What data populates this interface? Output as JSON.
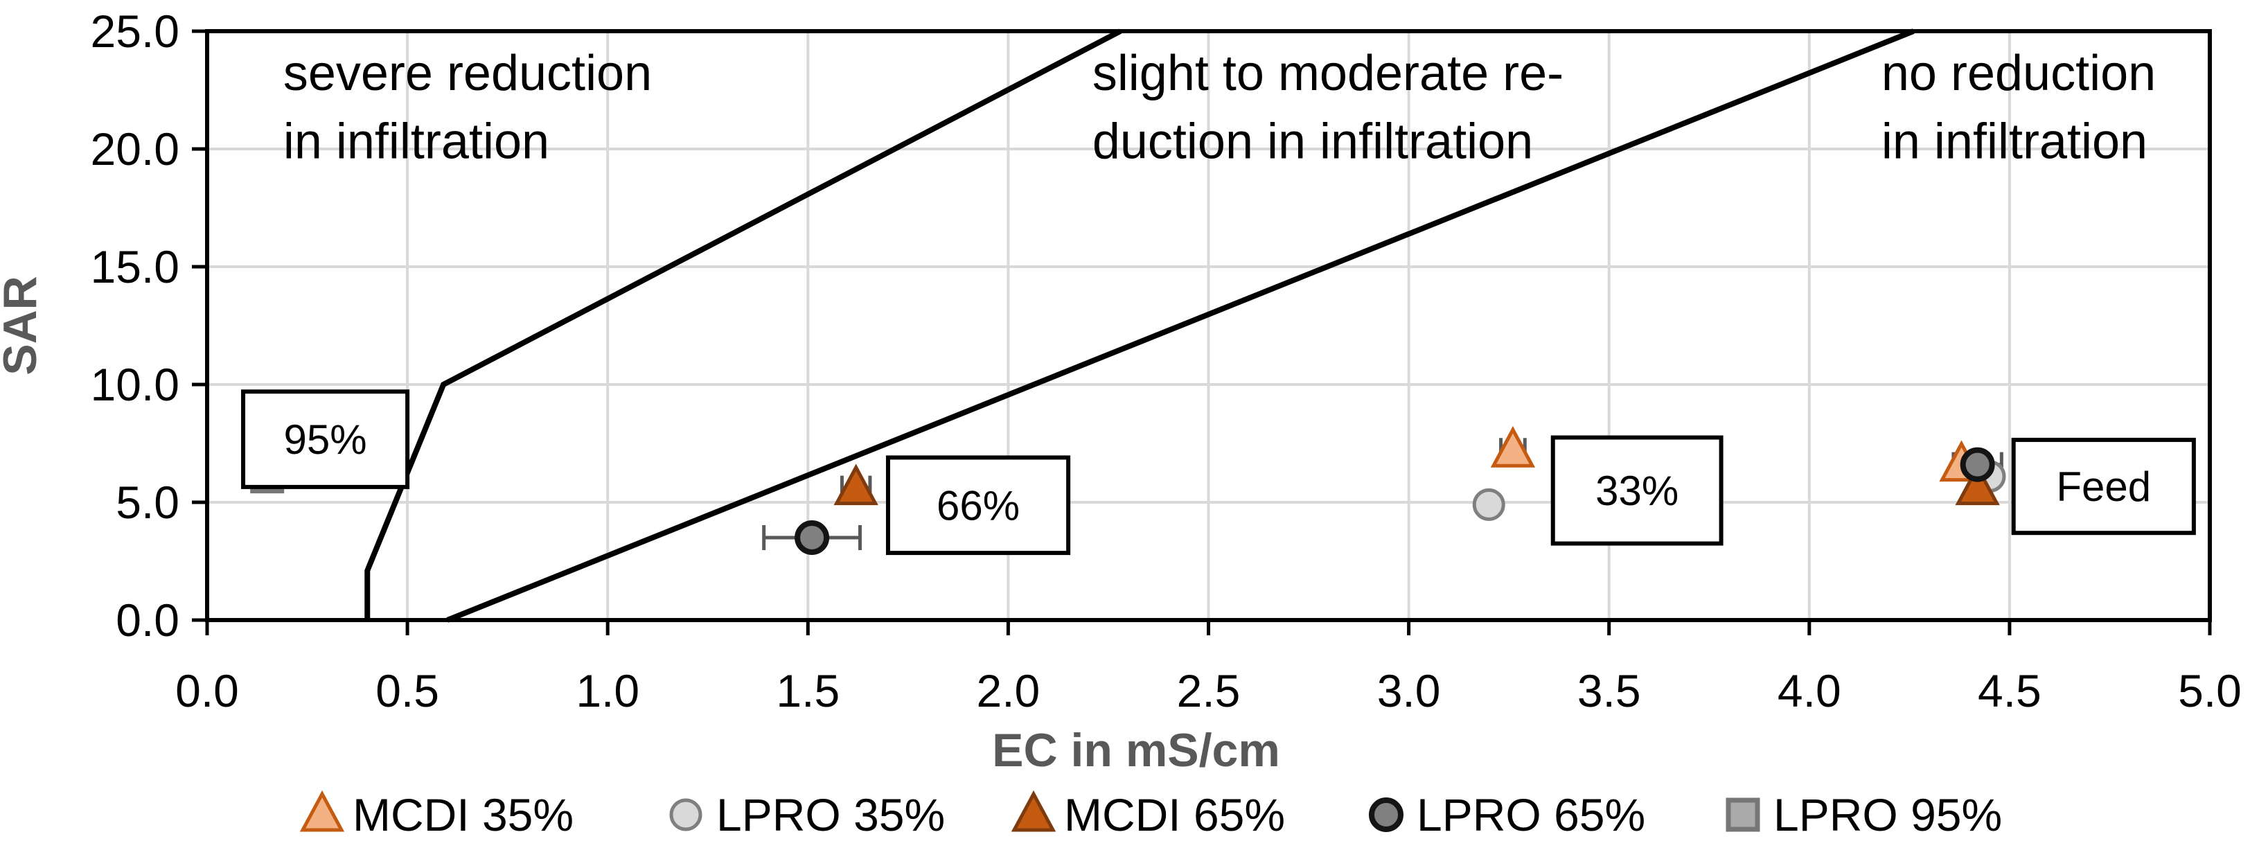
{
  "chart_data": {
    "type": "scatter",
    "title": "",
    "xlabel": "EC in mS/cm",
    "ylabel": "SAR",
    "xlim": [
      0.0,
      5.0
    ],
    "ylim": [
      0.0,
      25.0
    ],
    "x_tick_labels": [
      "0.0",
      "0.5",
      "1.0",
      "1.5",
      "2.0",
      "2.5",
      "3.0",
      "3.5",
      "4.0",
      "4.5",
      "5.0"
    ],
    "y_tick_labels": [
      "0.0",
      "5.0",
      "10.0",
      "15.0",
      "20.0",
      "25.0"
    ],
    "grid": true,
    "legend_position": "bottom",
    "gridline_color": "#D9D9D9",
    "axis_color": "#000000",
    "axis_title_color": "#595959",
    "error_bar_color": "#595959",
    "region_labels": [
      {
        "lines": [
          "severe reduction",
          "in infiltration"
        ],
        "x": 0.19,
        "baselines": [
          22.5,
          19.6
        ]
      },
      {
        "lines": [
          "slight to moderate re-",
          "duction in infiltration"
        ],
        "x": 2.21,
        "baselines": [
          22.5,
          19.6
        ]
      },
      {
        "lines": [
          "no reduction",
          "in infiltration"
        ],
        "x": 4.18,
        "baselines": [
          22.5,
          19.6
        ]
      }
    ],
    "boundary_lines": [
      {
        "name": "severe-to-moderate-boundary",
        "points": [
          [
            0.4,
            0.0
          ],
          [
            0.4,
            2.1
          ],
          [
            0.59,
            10.0
          ],
          [
            2.28,
            25.0
          ]
        ]
      },
      {
        "name": "moderate-to-none-boundary",
        "points": [
          [
            0.6,
            0.0
          ],
          [
            4.26,
            25.0
          ]
        ]
      }
    ],
    "series": [
      {
        "name": "MCDI 35%",
        "marker": "triangle",
        "fill": "#F4B183",
        "stroke": "#C55A11",
        "stroke_width": 5,
        "size": 56,
        "points": [
          {
            "x": 3.26,
            "y": 7.2,
            "xerr": 0.03
          },
          {
            "x": 4.38,
            "y": 6.6
          }
        ]
      },
      {
        "name": "LPRO 35%",
        "marker": "circle",
        "fill": "#D9D9D9",
        "stroke": "#7F7F7F",
        "stroke_width": 5,
        "size": 44,
        "points": [
          {
            "x": 3.2,
            "y": 4.9
          },
          {
            "x": 4.45,
            "y": 6.1
          }
        ]
      },
      {
        "name": "MCDI 65%",
        "marker": "triangle",
        "fill": "#C55A11",
        "stroke": "#7F3B0E",
        "stroke_width": 5,
        "size": 56,
        "points": [
          {
            "x": 1.62,
            "y": 5.6,
            "xerr": 0.035
          },
          {
            "x": 4.42,
            "y": 5.6
          }
        ]
      },
      {
        "name": "LPRO 65%",
        "marker": "circle",
        "fill": "#808080",
        "stroke": "#141414",
        "stroke_width": 8,
        "size": 44,
        "points": [
          {
            "x": 1.51,
            "y": 3.5,
            "xerr": 0.12
          },
          {
            "x": 4.42,
            "y": 6.6,
            "xerr": 0.06
          }
        ]
      },
      {
        "name": "LPRO 95%",
        "marker": "square",
        "fill": "#ABABAB",
        "stroke": "#767676",
        "stroke_width": 7,
        "size": 42,
        "points": [
          {
            "x": 0.15,
            "y": 6.1
          }
        ]
      }
    ],
    "annotation_boxes": [
      {
        "label": "95%",
        "x_range": [
          0.09,
          0.5
        ],
        "y_range": [
          5.65,
          9.7
        ]
      },
      {
        "label": "66%",
        "x_range": [
          1.7,
          2.15
        ],
        "y_range": [
          2.85,
          6.9
        ]
      },
      {
        "label": "33%",
        "x_range": [
          3.36,
          3.78
        ],
        "y_range": [
          3.25,
          7.75
        ]
      },
      {
        "label": "Feed",
        "x_range": [
          4.51,
          4.96
        ],
        "y_range": [
          3.7,
          7.65
        ]
      }
    ]
  }
}
